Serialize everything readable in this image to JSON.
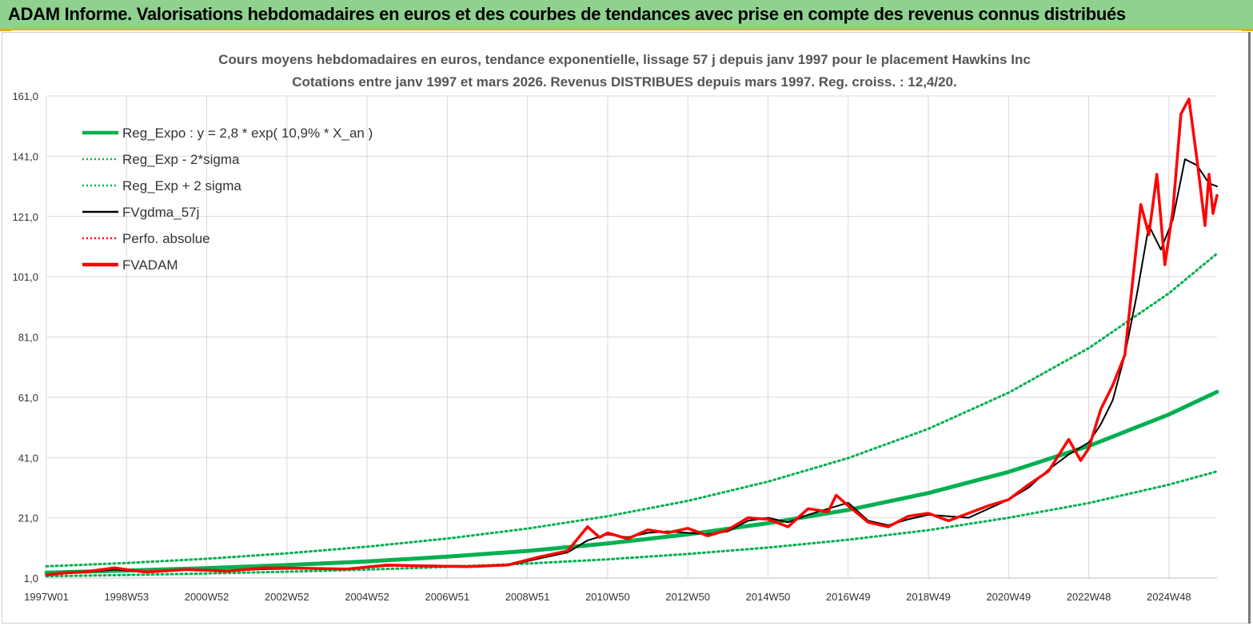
{
  "banner": {
    "title": "ADAM Informe. Valorisations hebdomadaires en euros et des courbes de tendances avec prise en compte des revenus connus distribués"
  },
  "chart_data": {
    "type": "line",
    "title_lines": [
      "Cours moyens hebdomadaires en euros, tendance exponentielle, lissage 57 j depuis janv 1997 pour le placement Hawkins Inc",
      "Cotations entre janv 1997 et mars 2026. Revenus DISTRIBUES depuis mars 1997. Reg. croiss. : 12,4/20."
    ],
    "xlabel": "",
    "ylabel": "",
    "x_tick_labels": [
      "1997W01",
      "1998W53",
      "2000W52",
      "2002W52",
      "2004W52",
      "2006W51",
      "2008W51",
      "2010W50",
      "2012W50",
      "2014W50",
      "2016W49",
      "2018W49",
      "2020W49",
      "2022W48",
      "2024W48"
    ],
    "x_tick_years": [
      1997.0,
      1999.0,
      2001.0,
      2003.0,
      2005.0,
      2007.0,
      2009.0,
      2011.0,
      2013.0,
      2015.0,
      2017.0,
      2019.0,
      2021.0,
      2023.0,
      2025.0
    ],
    "x_range": [
      1997.0,
      2026.2
    ],
    "y_ticks": [
      "1,0",
      "21,0",
      "41,0",
      "61,0",
      "81,0",
      "101,0",
      "121,0",
      "141,0",
      "161,0"
    ],
    "ylim": [
      1.0,
      161.0
    ],
    "grid": true,
    "legend_position": "top-left",
    "colors": {
      "reg": "#00b050",
      "fv": "#000000",
      "fvadam": "#ff0000",
      "grid": "#d9d9d9"
    },
    "legend": [
      {
        "label": "Reg_Expo : y = 2,8 * exp( 10,9% *  X_an )",
        "color": "#00b050",
        "style": "thick"
      },
      {
        "label": "Reg_Exp - 2*sigma",
        "color": "#00b050",
        "style": "dotted"
      },
      {
        "label": "Reg_Exp + 2 sigma",
        "color": "#00b050",
        "style": "dotted"
      },
      {
        "label": "FVgdma_57j",
        "color": "#000000",
        "style": "solid"
      },
      {
        "label": "Perfo. absolue",
        "color": "#ff0000",
        "style": "dotted"
      },
      {
        "label": "FVADAM",
        "color": "#ff0000",
        "style": "thick"
      }
    ],
    "series": [
      {
        "name": "Reg_Expo : y = 2,8 * exp( 10,9% *  X_an )",
        "x": [
          1997.0,
          1999.0,
          2001.0,
          2003.0,
          2005.0,
          2007.0,
          2009.0,
          2011.0,
          2013.0,
          2015.0,
          2017.0,
          2019.0,
          2021.0,
          2023.0,
          2025.0,
          2026.2
        ],
        "y": [
          2.8,
          3.5,
          4.3,
          5.3,
          6.5,
          8.1,
          10.0,
          12.5,
          15.5,
          19.2,
          23.6,
          29.2,
          36.2,
          44.8,
          55.3,
          62.8
        ]
      },
      {
        "name": "Reg_Exp - 2*sigma",
        "x": [
          1997.0,
          1999.0,
          2001.0,
          2003.0,
          2005.0,
          2007.0,
          2009.0,
          2011.0,
          2013.0,
          2015.0,
          2017.0,
          2019.0,
          2021.0,
          2023.0,
          2025.0,
          2026.2
        ],
        "y": [
          1.6,
          2.0,
          2.5,
          3.1,
          3.8,
          4.7,
          5.8,
          7.2,
          9.0,
          11.1,
          13.7,
          16.9,
          21.0,
          25.9,
          32.0,
          36.4
        ]
      },
      {
        "name": "Reg_Exp + 2 sigma",
        "x": [
          1997.0,
          1999.0,
          2001.0,
          2003.0,
          2005.0,
          2007.0,
          2009.0,
          2011.0,
          2013.0,
          2015.0,
          2017.0,
          2019.0,
          2021.0,
          2023.0,
          2025.0,
          2026.2
        ],
        "y": [
          4.9,
          6.0,
          7.4,
          9.2,
          11.4,
          14.1,
          17.4,
          21.5,
          26.6,
          33.0,
          40.8,
          50.5,
          62.5,
          77.3,
          95.5,
          108.7
        ]
      },
      {
        "name": "FVgdma_57j",
        "x": [
          1997.0,
          1997.5,
          1998.0,
          1998.7,
          1999.5,
          2000.5,
          2001.5,
          2002.5,
          2003.5,
          2004.5,
          2005.5,
          2006.5,
          2007.5,
          2008.5,
          2009.3,
          2010.0,
          2010.5,
          2011.0,
          2011.5,
          2012.0,
          2012.5,
          2013.0,
          2013.5,
          2014.0,
          2014.5,
          2015.0,
          2015.5,
          2016.0,
          2016.5,
          2017.0,
          2017.5,
          2018.0,
          2018.5,
          2019.0,
          2019.5,
          2020.0,
          2020.5,
          2021.0,
          2021.5,
          2022.0,
          2022.5,
          2023.0,
          2023.3,
          2023.6,
          2023.9,
          2024.2,
          2024.5,
          2024.8,
          2025.1,
          2025.4,
          2025.7,
          2026.0,
          2026.2
        ],
        "y": [
          2.0,
          2.5,
          3.0,
          3.8,
          3.0,
          3.7,
          3.4,
          4.0,
          4.1,
          4.0,
          5.0,
          5.2,
          5.0,
          5.1,
          7.5,
          9.5,
          13.5,
          15.5,
          14.5,
          16.0,
          16.5,
          16.0,
          15.5,
          16.5,
          20.0,
          21.0,
          19.5,
          22.0,
          24.0,
          26.0,
          20.0,
          18.5,
          20.5,
          22.0,
          21.5,
          21.0,
          24.0,
          27.0,
          31.0,
          37.0,
          42.0,
          46.0,
          52.0,
          60.0,
          75.0,
          95.0,
          118.0,
          110.0,
          120.0,
          140.0,
          138.0,
          132.0,
          131.0
        ]
      },
      {
        "name": "Perfo. absolue",
        "x": [],
        "y": []
      },
      {
        "name": "FVADAM",
        "x": [
          1997.0,
          1997.5,
          1998.0,
          1998.7,
          1999.2,
          1999.5,
          2000.5,
          2001.5,
          2002.5,
          2003.5,
          2004.5,
          2005.5,
          2006.5,
          2007.5,
          2008.5,
          2009.3,
          2010.0,
          2010.5,
          2010.8,
          2011.0,
          2011.5,
          2012.0,
          2012.5,
          2013.0,
          2013.5,
          2014.0,
          2014.5,
          2015.0,
          2015.5,
          2016.0,
          2016.5,
          2016.7,
          2017.0,
          2017.5,
          2018.0,
          2018.5,
          2019.0,
          2019.5,
          2020.0,
          2020.5,
          2021.0,
          2021.5,
          2022.0,
          2022.5,
          2022.8,
          2023.0,
          2023.3,
          2023.6,
          2023.9,
          2024.1,
          2024.3,
          2024.5,
          2024.7,
          2024.9,
          2025.1,
          2025.3,
          2025.5,
          2025.7,
          2025.9,
          2026.0,
          2026.1,
          2026.2
        ],
        "y": [
          2.0,
          2.8,
          3.1,
          4.4,
          3.4,
          3.0,
          3.8,
          3.3,
          4.4,
          4.2,
          4.0,
          5.3,
          5.0,
          4.8,
          5.3,
          8.0,
          10.0,
          18.0,
          14.5,
          16.0,
          14.0,
          17.0,
          16.0,
          17.5,
          15.0,
          17.0,
          21.0,
          20.5,
          18.0,
          24.0,
          23.0,
          28.5,
          25.0,
          19.5,
          18.0,
          21.5,
          22.5,
          20.0,
          22.5,
          25.0,
          27.0,
          32.0,
          36.5,
          47.0,
          40.0,
          44.0,
          57.0,
          65.0,
          75.0,
          100.0,
          125.0,
          115.0,
          135.0,
          105.0,
          123.0,
          155.0,
          160.0,
          140.0,
          118.0,
          135.0,
          122.0,
          128.0
        ]
      }
    ]
  }
}
